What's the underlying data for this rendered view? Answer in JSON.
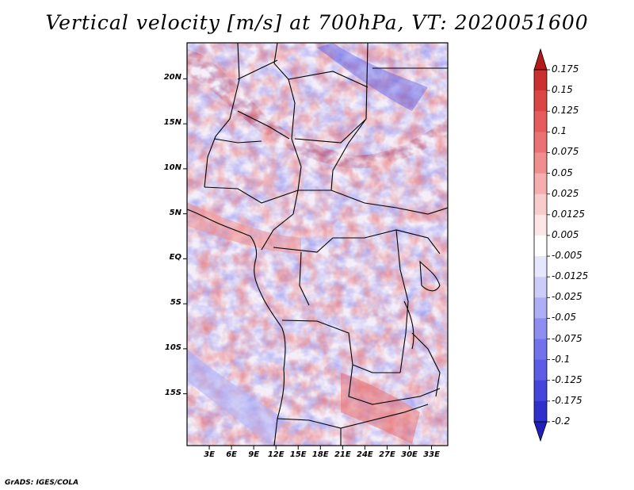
{
  "title": "Vertical velocity [m/s] at 700hPa, VT: 2020051600",
  "credit": "GrADS: IGES/COLA",
  "map": {
    "variable": "Vertical velocity",
    "units": "m/s",
    "level": "700hPa",
    "valid_time": "2020051600",
    "lon_range": [
      0,
      35
    ],
    "lat_range": [
      -20,
      24
    ],
    "lat_ticks": [
      {
        "value": 20,
        "label": "20N"
      },
      {
        "value": 15,
        "label": "15N"
      },
      {
        "value": 10,
        "label": "10N"
      },
      {
        "value": 5,
        "label": "5N"
      },
      {
        "value": 0,
        "label": "EQ"
      },
      {
        "value": -5,
        "label": "5S"
      },
      {
        "value": -10,
        "label": "10S"
      },
      {
        "value": -15,
        "label": "15S"
      }
    ],
    "lon_ticks": [
      {
        "value": 3,
        "label": "3E"
      },
      {
        "value": 6,
        "label": "6E"
      },
      {
        "value": 9,
        "label": "9E"
      },
      {
        "value": 12,
        "label": "12E"
      },
      {
        "value": 15,
        "label": "15E"
      },
      {
        "value": 18,
        "label": "18E"
      },
      {
        "value": 21,
        "label": "21E"
      },
      {
        "value": 24,
        "label": "24E"
      },
      {
        "value": 27,
        "label": "27E"
      },
      {
        "value": 30,
        "label": "30E"
      },
      {
        "value": 33,
        "label": "33E"
      }
    ]
  },
  "colorbar": {
    "levels": [
      {
        "label": "0.175",
        "color": "#b31a1a"
      },
      {
        "label": "0.15",
        "color": "#cc2f2f"
      },
      {
        "label": "0.125",
        "color": "#dc4545"
      },
      {
        "label": "0.1",
        "color": "#e45c5c"
      },
      {
        "label": "0.075",
        "color": "#ea7272"
      },
      {
        "label": "0.05",
        "color": "#f08e8e"
      },
      {
        "label": "0.025",
        "color": "#f5aeae"
      },
      {
        "label": "0.0125",
        "color": "#f9cccc"
      },
      {
        "label": "0.005",
        "color": "#fce6e6"
      },
      {
        "label": "-0.005",
        "color": "#ffffff"
      },
      {
        "label": "-0.0125",
        "color": "#e6e6fc"
      },
      {
        "label": "-0.025",
        "color": "#ccccf9"
      },
      {
        "label": "-0.05",
        "color": "#aeaef5"
      },
      {
        "label": "-0.075",
        "color": "#8e8ef0"
      },
      {
        "label": "-0.1",
        "color": "#7272ea"
      },
      {
        "label": "-0.125",
        "color": "#5c5ce4"
      },
      {
        "label": "-0.175",
        "color": "#4545dc"
      },
      {
        "label": "-0.2",
        "color": "#2f2fcc"
      }
    ],
    "max_arrow_color": "#b31a1a",
    "min_arrow_color": "#2020b8"
  }
}
